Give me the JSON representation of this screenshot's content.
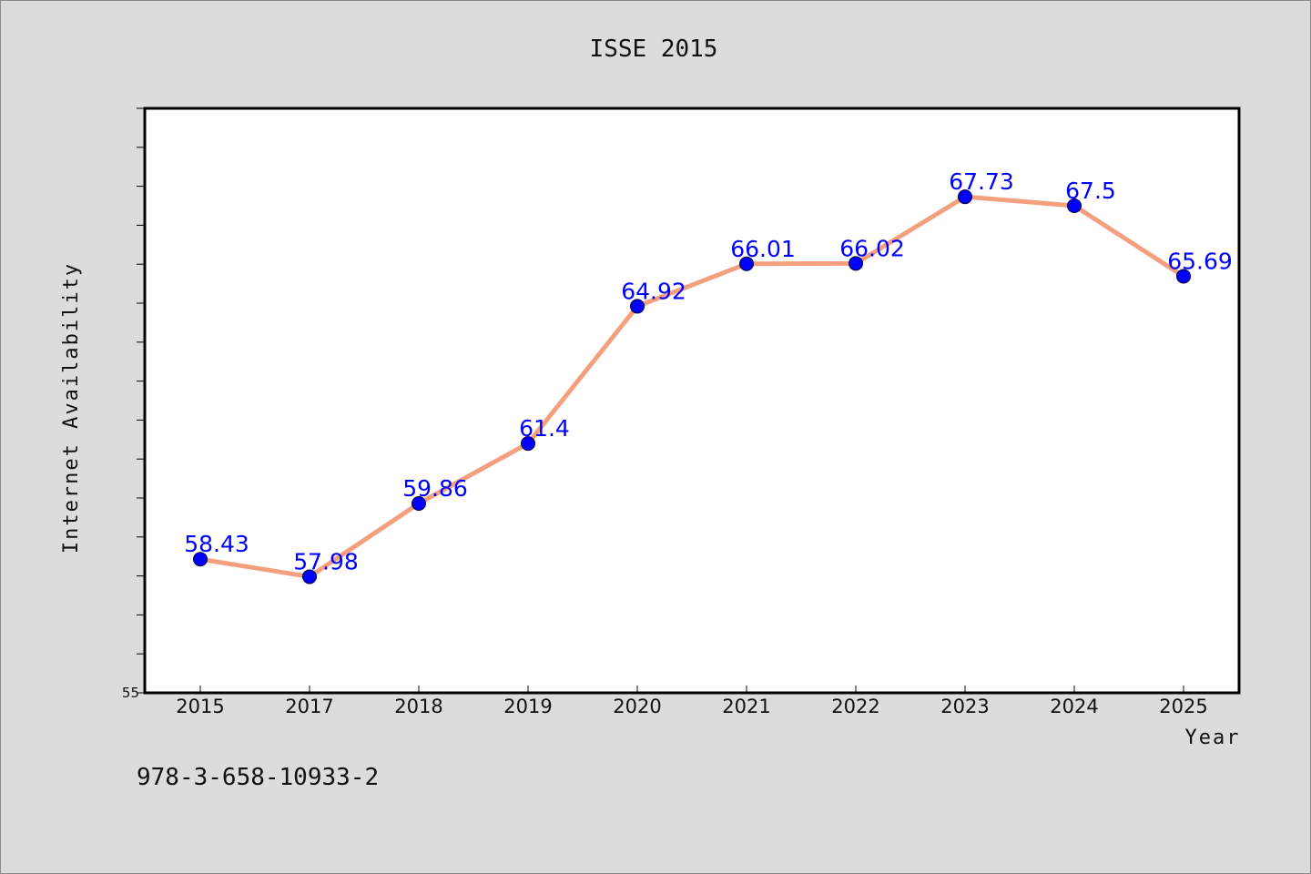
{
  "chart_data": {
    "type": "line",
    "title": "ISSE 2015",
    "xlabel": "Year",
    "ylabel": "Internet Availability",
    "categories": [
      "2015",
      "2017",
      "2018",
      "2019",
      "2020",
      "2021",
      "2022",
      "2023",
      "2024",
      "2025"
    ],
    "values": [
      58.43,
      57.98,
      59.86,
      61.4,
      64.92,
      66.01,
      66.02,
      67.73,
      67.5,
      65.69
    ],
    "data_labels": [
      "58.43",
      "57.98",
      "59.86",
      "61.4",
      "64.92",
      "66.01",
      "66.02",
      "67.73",
      "67.5",
      "65.69"
    ],
    "y_tick_labels": [
      "55"
    ],
    "ylim": [
      55,
      70
    ],
    "grid": false,
    "line_color": "#f4a07f",
    "marker_color": "#0000ff",
    "label_color": "#0000ff"
  },
  "footer": {
    "isbn": "978-3-658-10933-2"
  }
}
